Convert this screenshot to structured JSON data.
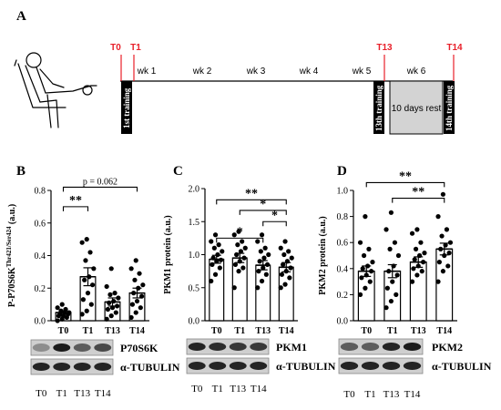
{
  "panel_A": {
    "letter": "A",
    "timepoints": [
      "T0",
      "T1",
      "T13",
      "T14"
    ],
    "weeks": [
      "wk 1",
      "wk 2",
      "wk 3",
      "wk 4",
      "wk 5",
      "wk 6"
    ],
    "session_1": "1st training",
    "session_13": "13th training",
    "session_14": "14th training",
    "rest_label": "10 days rest",
    "colors": {
      "timepoint": "#e8202a",
      "rest_box": "#d3d3d3",
      "session_box": "#000000"
    }
  },
  "chart_data": [
    {
      "id": "B",
      "type": "bar",
      "letter": "B",
      "ylabel": "P-P70S6K Thr421/Ser424 (a.u.)",
      "ylabel_main": "P-P70S6K",
      "ylabel_sup": "Thr421/Ser424",
      "ylabel_tail": " (a.u.)",
      "ylim": [
        0,
        0.8
      ],
      "yticks": [
        "0.0",
        "0.2",
        "0.4",
        "0.6",
        "0.8"
      ],
      "categories": [
        "T0",
        "T1",
        "T13",
        "T14"
      ],
      "values": [
        0.05,
        0.27,
        0.115,
        0.17
      ],
      "sem": [
        0.01,
        0.055,
        0.025,
        0.03
      ],
      "points": [
        [
          0.0,
          0.01,
          0.02,
          0.03,
          0.03,
          0.04,
          0.04,
          0.05,
          0.05,
          0.06,
          0.07,
          0.08,
          0.1
        ],
        [
          0.04,
          0.06,
          0.1,
          0.13,
          0.17,
          0.22,
          0.25,
          0.27,
          0.32,
          0.37,
          0.42,
          0.48,
          0.5
        ],
        [
          0.01,
          0.03,
          0.05,
          0.07,
          0.08,
          0.09,
          0.11,
          0.12,
          0.14,
          0.16,
          0.17,
          0.21,
          0.32
        ],
        [
          0.02,
          0.05,
          0.08,
          0.1,
          0.12,
          0.15,
          0.17,
          0.2,
          0.22,
          0.25,
          0.29,
          0.32,
          0.37
        ]
      ],
      "brackets": [
        {
          "from": 0,
          "to": 1,
          "label": "**",
          "y": 0.7
        },
        {
          "from": 0,
          "to": 3,
          "label": "p = 0.062",
          "y": 0.82
        }
      ],
      "blot": {
        "target": "P70S6K",
        "loading": "α-TUBULIN",
        "lanes": [
          "T0",
          "T1",
          "T13",
          "T14"
        ]
      }
    },
    {
      "id": "C",
      "type": "bar",
      "letter": "C",
      "ylabel": "PKM1 protein (a.u.)",
      "ylim": [
        0,
        2.0
      ],
      "yticks": [
        "0.0",
        "0.5",
        "1.0",
        "1.5",
        "2.0"
      ],
      "categories": [
        "T0",
        "T1",
        "T13",
        "T14"
      ],
      "values": [
        0.93,
        0.95,
        0.84,
        0.81
      ],
      "sem": [
        0.06,
        0.07,
        0.07,
        0.07
      ],
      "points": [
        [
          0.6,
          0.7,
          0.8,
          0.85,
          0.9,
          0.92,
          0.95,
          1.0,
          1.05,
          1.1,
          1.15,
          1.2,
          1.3
        ],
        [
          0.5,
          0.75,
          0.8,
          0.85,
          0.9,
          0.95,
          1.0,
          1.05,
          1.1,
          1.15,
          1.2,
          1.3,
          1.35
        ],
        [
          0.5,
          0.6,
          0.7,
          0.75,
          0.8,
          0.85,
          0.9,
          0.95,
          1.0,
          1.05,
          1.1,
          1.2,
          1.3
        ],
        [
          0.5,
          0.55,
          0.65,
          0.7,
          0.75,
          0.8,
          0.85,
          0.9,
          0.95,
          1.0,
          1.05,
          1.1,
          1.2
        ]
      ],
      "brackets": [
        {
          "from": 2,
          "to": 3,
          "label": "*",
          "y": 1.5
        },
        {
          "from": 1,
          "to": 3,
          "label": "*",
          "y": 1.67
        },
        {
          "from": 0,
          "to": 2,
          "label": "*",
          "y": 1.25
        },
        {
          "from": 0,
          "to": 3,
          "label": "**",
          "y": 1.83
        }
      ],
      "brackets_order_note": "",
      "blot": {
        "target": "PKM1",
        "loading": "α-TUBULIN",
        "lanes": [
          "T0",
          "T1",
          "T13",
          "T14"
        ]
      }
    },
    {
      "id": "D",
      "type": "bar",
      "letter": "D",
      "ylabel": "PKM2 protein (a.u.)",
      "ylim": [
        0,
        1.0
      ],
      "yticks": [
        "0.0",
        "0.2",
        "0.4",
        "0.6",
        "0.8",
        "1.0"
      ],
      "categories": [
        "T0",
        "T1",
        "T13",
        "T14"
      ],
      "values": [
        0.38,
        0.38,
        0.45,
        0.55
      ],
      "sem": [
        0.04,
        0.05,
        0.04,
        0.045
      ],
      "points": [
        [
          0.2,
          0.25,
          0.3,
          0.33,
          0.35,
          0.38,
          0.4,
          0.42,
          0.45,
          0.5,
          0.55,
          0.6,
          0.8
        ],
        [
          0.1,
          0.15,
          0.2,
          0.25,
          0.3,
          0.35,
          0.38,
          0.42,
          0.5,
          0.55,
          0.6,
          0.7,
          0.83
        ],
        [
          0.3,
          0.35,
          0.38,
          0.4,
          0.42,
          0.45,
          0.47,
          0.5,
          0.52,
          0.55,
          0.6,
          0.67,
          0.7
        ],
        [
          0.3,
          0.38,
          0.42,
          0.45,
          0.5,
          0.52,
          0.55,
          0.58,
          0.6,
          0.65,
          0.7,
          0.8,
          0.97
        ]
      ],
      "brackets": [
        {
          "from": 1,
          "to": 3,
          "label": "**",
          "y": 0.94
        },
        {
          "from": 0,
          "to": 3,
          "label": "**",
          "y": 1.06
        }
      ],
      "blot": {
        "target": "PKM2",
        "loading": "α-TUBULIN",
        "lanes": [
          "T0",
          "T1",
          "T13",
          "T14"
        ]
      }
    }
  ]
}
